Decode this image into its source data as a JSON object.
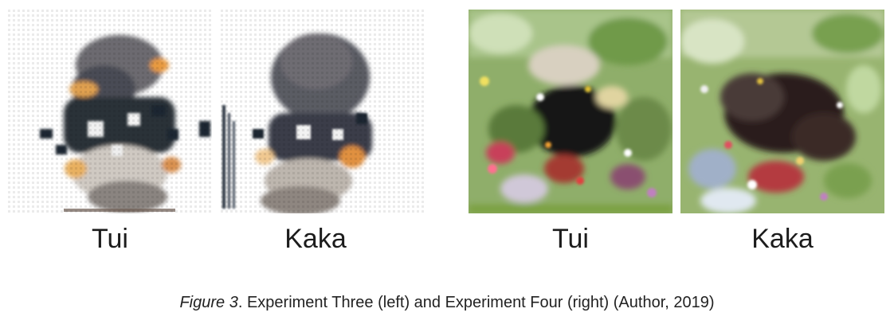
{
  "figure": {
    "panels": [
      {
        "id": "exp3-tui",
        "label": "Tui",
        "experiment": "Experiment Three"
      },
      {
        "id": "exp3-kaka",
        "label": "Kaka",
        "experiment": "Experiment Three"
      },
      {
        "id": "exp4-tui",
        "label": "Tui",
        "experiment": "Experiment Four"
      },
      {
        "id": "exp4-kaka",
        "label": "Kaka",
        "experiment": "Experiment Four"
      }
    ],
    "caption": {
      "prefix": "Figure 3",
      "text": ". Experiment Three (left) and Experiment Four (right) (Author, 2019)"
    }
  }
}
